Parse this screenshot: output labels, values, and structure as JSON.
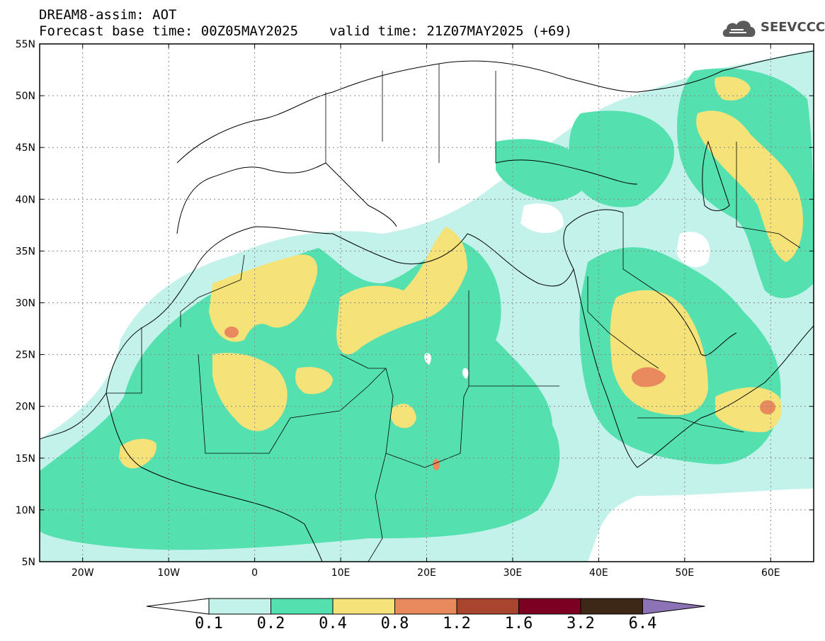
{
  "header": {
    "title_line1": "DREAM8-assim: AOT",
    "forecast_base": "Forecast base time: 00Z05MAY2025",
    "valid_time": "valid time: 21Z07MAY2025 (+69)"
  },
  "logo": {
    "text": "SEEVCCC",
    "icon": "cloud-icon"
  },
  "map": {
    "lon_labels": [
      "20W",
      "10W",
      "0",
      "10E",
      "20E",
      "30E",
      "40E",
      "50E",
      "60E"
    ],
    "lat_labels": [
      "55N",
      "50N",
      "45N",
      "40N",
      "35N",
      "30N",
      "25N",
      "20N",
      "15N",
      "10N",
      "5N"
    ],
    "lon_range": [
      -25,
      65
    ],
    "lat_range": [
      5,
      55
    ],
    "grid": "dotted"
  },
  "colorbar": {
    "labels": [
      "0.1",
      "0.2",
      "0.4",
      "0.8",
      "1.2",
      "1.6",
      "3.2",
      "6.4"
    ],
    "colors": [
      "#c2f2ea",
      "#55e0b0",
      "#f5e278",
      "#e8895e",
      "#a9442f",
      "#7c0022",
      "#3d2817",
      "#8e72b6"
    ],
    "under_color": "#ffffff"
  }
}
